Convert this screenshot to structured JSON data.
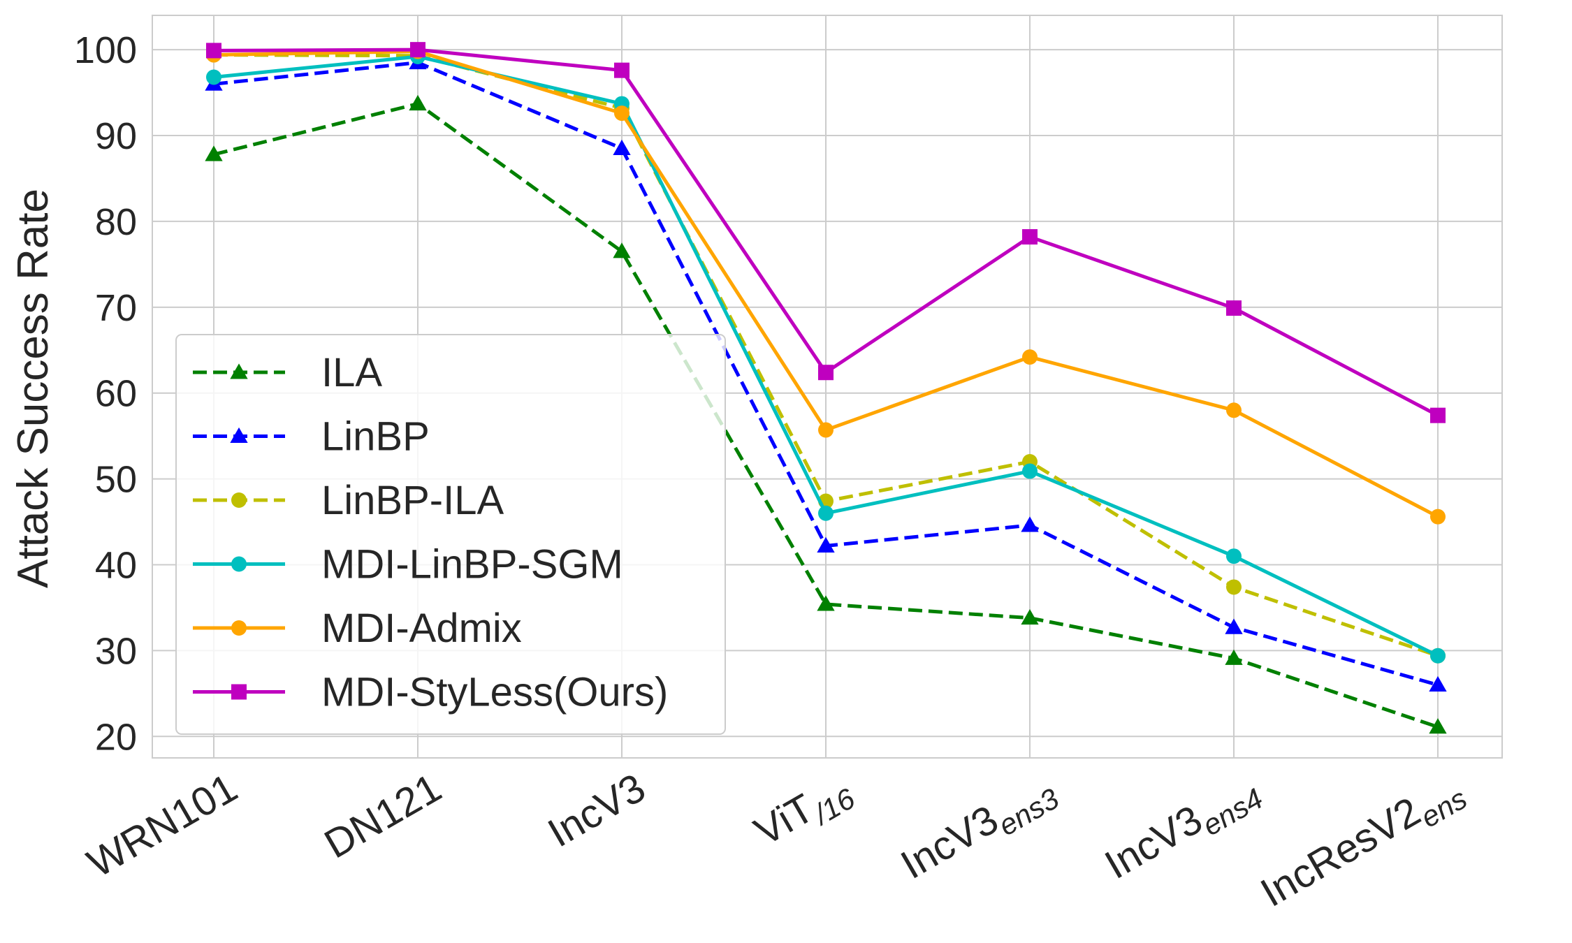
{
  "chart_data": {
    "type": "line",
    "title": "",
    "xlabel": "",
    "ylabel": "Attack  Success  Rate",
    "ylim": [
      17.5,
      104
    ],
    "yticks": [
      20,
      30,
      40,
      50,
      60,
      70,
      80,
      90,
      100
    ],
    "grid": true,
    "legend_position": "lower-left",
    "categories": [
      {
        "base": "WRN101",
        "sub": ""
      },
      {
        "base": "DN121",
        "sub": ""
      },
      {
        "base": "IncV3",
        "sub": ""
      },
      {
        "base": "ViT",
        "sub": "/16"
      },
      {
        "base": "IncV3",
        "sub": "ens3"
      },
      {
        "base": "IncV3",
        "sub": "ens4"
      },
      {
        "base": "IncResV2",
        "sub": "ens"
      }
    ],
    "series": [
      {
        "name": "ILA",
        "color": "#008000",
        "dash": "dashed",
        "marker": "triangle",
        "values": [
          87.8,
          93.7,
          76.5,
          35.4,
          33.8,
          29.1,
          21.1
        ]
      },
      {
        "name": "LinBP",
        "color": "#0000ff",
        "dash": "dashed",
        "marker": "triangle",
        "values": [
          96.0,
          98.5,
          88.5,
          42.2,
          44.6,
          32.7,
          26.0
        ]
      },
      {
        "name": "LinBP-ILA",
        "color": "#bfbf00",
        "dash": "dashed",
        "marker": "circle",
        "values": [
          99.4,
          99.3,
          93.2,
          47.4,
          52.0,
          37.4,
          29.4
        ]
      },
      {
        "name": "MDI-LinBP-SGM",
        "color": "#00bfbf",
        "dash": "solid",
        "marker": "circle",
        "values": [
          96.8,
          99.2,
          93.7,
          46.0,
          50.9,
          41.0,
          29.4
        ]
      },
      {
        "name": "MDI-Admix",
        "color": "#ffa500",
        "dash": "solid",
        "marker": "circle",
        "values": [
          99.4,
          99.8,
          92.6,
          55.7,
          64.2,
          58.0,
          45.6
        ]
      },
      {
        "name": "MDI-StyLess(Ours)",
        "color": "#bf00bf",
        "dash": "solid",
        "marker": "square",
        "values": [
          99.9,
          100.0,
          97.6,
          62.4,
          78.2,
          69.9,
          57.4
        ]
      }
    ]
  }
}
